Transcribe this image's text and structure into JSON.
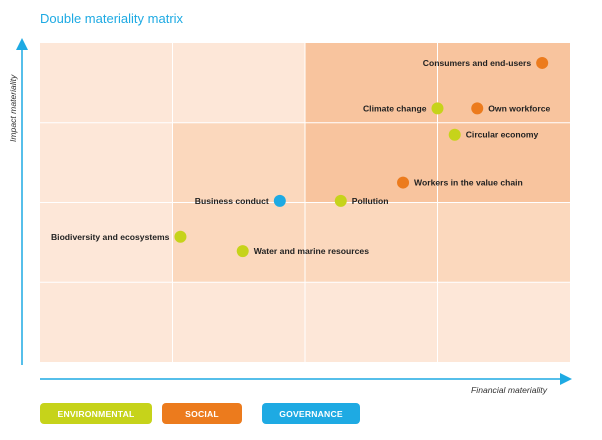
{
  "chart_data": {
    "type": "scatter",
    "title": "Double materiality matrix",
    "xlabel": "Financial materiality",
    "ylabel": "Impact materiality",
    "xlim": [
      0,
      4
    ],
    "ylim": [
      0,
      4
    ],
    "grid": true,
    "legend_placement": "bottom-left",
    "categories": [
      {
        "name": "ENVIRONMENTAL",
        "color": "#c6d31a"
      },
      {
        "name": "SOCIAL",
        "color": "#ec7b1d"
      },
      {
        "name": "GOVERNANCE",
        "color": "#1eaae3"
      }
    ],
    "points": [
      {
        "label": "Consumers and end-users",
        "category": "SOCIAL",
        "x": 3.79,
        "y": 3.75
      },
      {
        "label": "Climate change",
        "category": "ENVIRONMENTAL",
        "x": 3.0,
        "y": 3.18
      },
      {
        "label": "Own workforce",
        "category": "SOCIAL",
        "x": 3.3,
        "y": 3.18
      },
      {
        "label": "Circular economy",
        "category": "ENVIRONMENTAL",
        "x": 3.13,
        "y": 2.85
      },
      {
        "label": "Workers in the value chain",
        "category": "SOCIAL",
        "x": 2.74,
        "y": 2.25
      },
      {
        "label": "Business conduct",
        "category": "GOVERNANCE",
        "x": 1.81,
        "y": 2.02
      },
      {
        "label": "Pollution",
        "category": "ENVIRONMENTAL",
        "x": 2.27,
        "y": 2.02
      },
      {
        "label": "Biodiversity and ecosystems",
        "category": "ENVIRONMENTAL",
        "x": 1.06,
        "y": 1.57
      },
      {
        "label": "Water and marine resources",
        "category": "ENVIRONMENTAL",
        "x": 1.53,
        "y": 1.39
      }
    ]
  },
  "colors": {
    "title": "#1eaae3",
    "axis": "#1eaae3",
    "cell_light": "#fde7d8",
    "cell_mid": "#fbd8bd",
    "cell_dark": "#f8c49e",
    "grid_line": "#ffffff"
  }
}
